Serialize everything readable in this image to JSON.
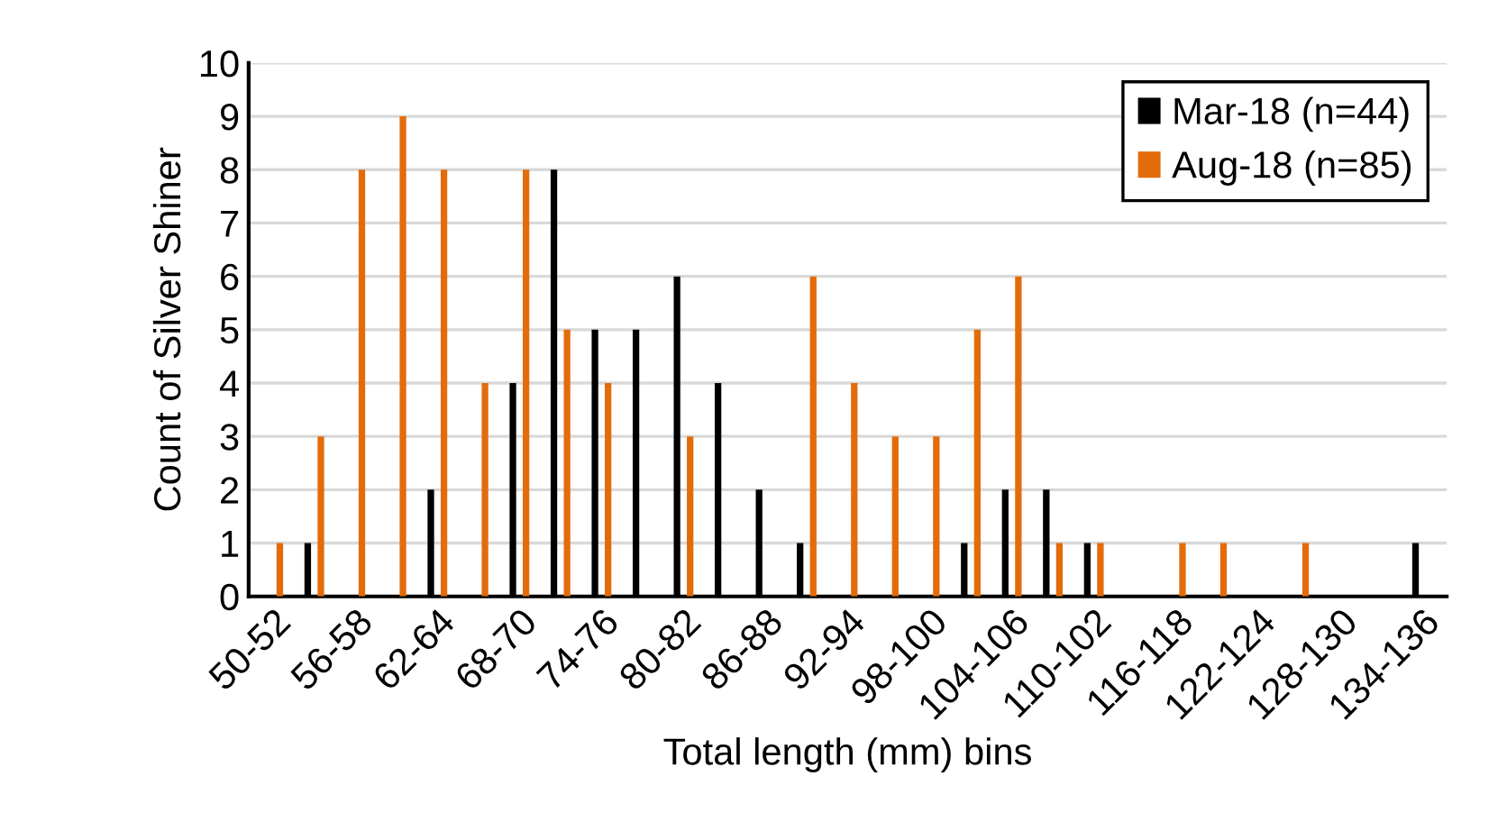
{
  "chart_data": {
    "type": "bar",
    "xlabel": "Total length (mm) bins",
    "ylabel": "Count of Silver Shiner",
    "categories": [
      "50-52",
      null,
      "56-58",
      null,
      "62-64",
      null,
      "68-70",
      null,
      "74-76",
      null,
      "80-82",
      null,
      "86-88",
      null,
      "92-94",
      null,
      "98-100",
      null,
      "104-106",
      null,
      "110-102",
      null,
      "116-118",
      null,
      "122-124",
      null,
      "128-130",
      null,
      "134-136"
    ],
    "series": [
      {
        "name": "Mar-18 (n=44)",
        "color": "#000000",
        "values": [
          0,
          1,
          0,
          0,
          2,
          0,
          4,
          8,
          5,
          5,
          6,
          4,
          2,
          1,
          0,
          0,
          0,
          1,
          2,
          2,
          1,
          0,
          0,
          0,
          0,
          0,
          0,
          0,
          1
        ]
      },
      {
        "name": "Aug-18 (n=85)",
        "color": "#e36c0a",
        "values": [
          1,
          3,
          8,
          9,
          8,
          4,
          8,
          5,
          4,
          0,
          3,
          0,
          0,
          6,
          4,
          3,
          3,
          5,
          6,
          1,
          1,
          0,
          1,
          1,
          0,
          1,
          0,
          0,
          0
        ]
      }
    ],
    "ylim": [
      0,
      10
    ],
    "yticks": [
      0,
      1,
      2,
      3,
      4,
      5,
      6,
      7,
      8,
      9,
      10
    ],
    "grid": "y",
    "legend": "top right"
  }
}
